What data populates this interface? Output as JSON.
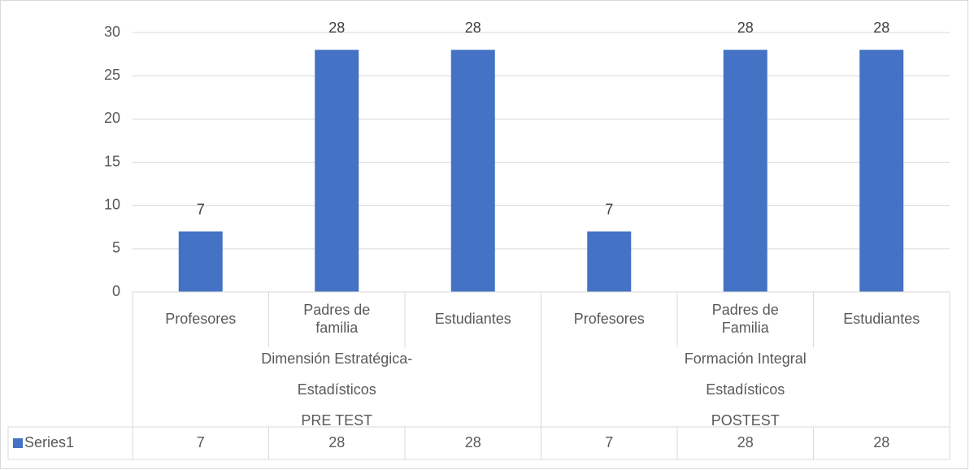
{
  "chart_data": {
    "type": "bar",
    "categories": [
      [
        "Profesores"
      ],
      [
        "Padres de",
        "familia"
      ],
      [
        "Estudiantes"
      ],
      [
        "Profesores"
      ],
      [
        "Padres de",
        "Familia"
      ],
      [
        "Estudiantes"
      ]
    ],
    "groups": [
      {
        "lines": [
          "Dimensión Estratégica-",
          "Estadísticos",
          "PRE TEST"
        ],
        "span": 3
      },
      {
        "lines": [
          "Formación Integral",
          "Estadísticos",
          "POSTEST"
        ],
        "span": 3
      }
    ],
    "series": [
      {
        "name": "Series1",
        "color": "#4472c4",
        "values": [
          7,
          28,
          28,
          7,
          28,
          28
        ]
      }
    ],
    "ylim": [
      0,
      30
    ],
    "yticks": [
      0,
      5,
      10,
      15,
      20,
      25,
      30
    ],
    "grid": true,
    "data_labels": true,
    "data_table": true
  }
}
